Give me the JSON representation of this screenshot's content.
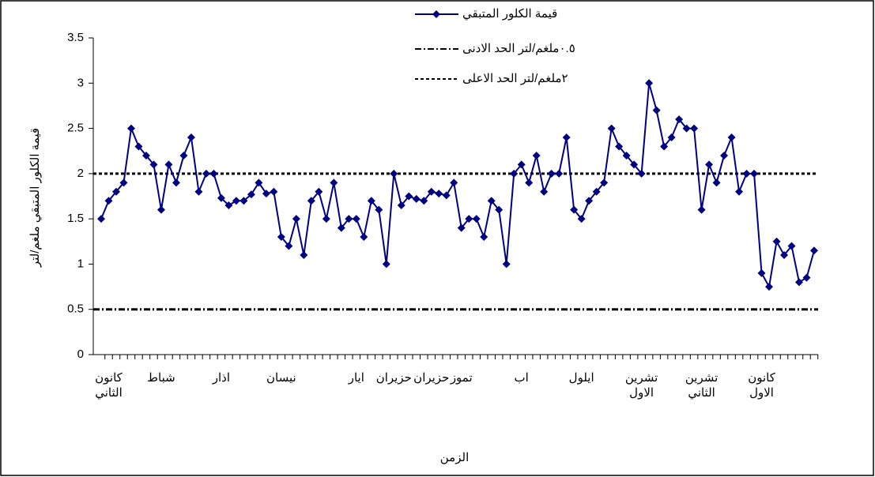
{
  "chart_data": {
    "type": "line",
    "y_label": "قيمة الكلور المتبقي ملغم/لتر",
    "x_label": "الزمن",
    "categories": [
      null,
      "كانون الثاني",
      null,
      null,
      null,
      null,
      null,
      null,
      "شباط",
      null,
      null,
      null,
      null,
      null,
      null,
      null,
      "اذار",
      null,
      null,
      null,
      null,
      null,
      null,
      null,
      "نيسان",
      null,
      null,
      null,
      null,
      null,
      null,
      null,
      null,
      null,
      "ايار",
      null,
      null,
      null,
      null,
      "حزيران",
      null,
      null,
      null,
      null,
      "حزيران",
      null,
      null,
      null,
      "تموز",
      null,
      null,
      null,
      null,
      null,
      null,
      null,
      "اب",
      null,
      null,
      null,
      null,
      null,
      null,
      null,
      "ايلول",
      null,
      null,
      null,
      null,
      null,
      null,
      null,
      "تشرين الاول",
      null,
      null,
      null,
      null,
      null,
      null,
      null,
      "تشرين الثاني",
      null,
      null,
      null,
      null,
      null,
      null,
      null,
      "كانون الاول",
      null,
      null,
      null,
      null,
      null,
      null,
      null
    ],
    "series": [
      {
        "name": "قيمة الكلور المتبقي",
        "color": "#000080",
        "values": [
          1.5,
          1.7,
          1.8,
          1.9,
          2.5,
          2.3,
          2.2,
          2.1,
          1.6,
          2.1,
          1.9,
          2.2,
          2.4,
          1.8,
          2.0,
          2.0,
          1.73,
          1.65,
          1.7,
          1.7,
          1.77,
          1.9,
          1.78,
          1.8,
          1.3,
          1.2,
          1.5,
          1.1,
          1.7,
          1.8,
          1.5,
          1.9,
          1.4,
          1.5,
          1.5,
          1.3,
          1.7,
          1.6,
          1.0,
          2.0,
          1.65,
          1.75,
          1.72,
          1.7,
          1.8,
          1.78,
          1.76,
          1.9,
          1.4,
          1.5,
          1.5,
          1.3,
          1.7,
          1.6,
          1.0,
          2.0,
          2.1,
          1.9,
          2.2,
          1.8,
          2.0,
          2.0,
          2.4,
          1.6,
          1.5,
          1.7,
          1.8,
          1.9,
          2.5,
          2.3,
          2.2,
          2.1,
          2.0,
          3.0,
          2.7,
          2.3,
          2.4,
          2.6,
          2.5,
          2.5,
          1.6,
          2.1,
          1.9,
          2.2,
          2.4,
          1.8,
          2.0,
          2.0,
          0.9,
          0.75,
          1.25,
          1.1,
          1.2,
          0.8,
          0.85,
          1.15
        ]
      }
    ],
    "reference_lines": [
      {
        "name": "٠.٥ملغم/لتر الحد الادنى",
        "value": 0.5,
        "style": "dashdot",
        "color": "#000000"
      },
      {
        "name": "٢ملغم/لتر الحد الاعلى",
        "value": 2,
        "style": "dashed",
        "color": "#000000"
      }
    ],
    "ylim": [
      0,
      3.5
    ],
    "yticks": [
      0,
      0.5,
      1,
      1.5,
      2,
      2.5,
      3,
      3.5
    ]
  }
}
